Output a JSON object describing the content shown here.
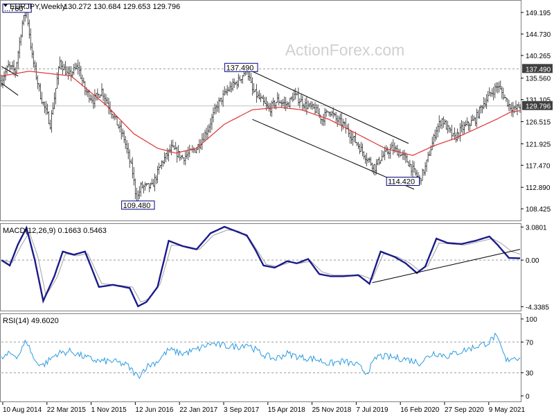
{
  "chart_data": {
    "type": "line",
    "colors": {
      "price": "#222222",
      "ma": "#e03030",
      "macd": "#1a1a8c",
      "signal": "#a0a0a0",
      "rsi": "#2a9be0",
      "trendline": "#000000",
      "level": "#999999"
    },
    "main": {
      "title": "EURJPY,Weekly",
      "ohlc": "130.272 130.684 129.653 129.796",
      "watermark": "ActionForex.com",
      "ylim": [
        106.0,
        151.5
      ],
      "ticks": [
        "149.195",
        "144.730",
        "140.265",
        "135.560",
        "131.105",
        "126.515",
        "121.925",
        "117.470",
        "112.890",
        "108.425"
      ],
      "tick_values": [
        149.195,
        144.73,
        140.265,
        135.56,
        131.105,
        126.515,
        121.925,
        117.47,
        112.89,
        108.425
      ],
      "last_price": "129.796",
      "last_value": 129.796,
      "level_label": "137.490",
      "level_value": 137.49,
      "annotations": [
        {
          "text": "...760",
          "x": 1,
          "y": 149.8
        },
        {
          "text": "137.490",
          "x": 172,
          "y": 137.49
        },
        {
          "text": "109.480",
          "x": 98,
          "y": 109.48
        },
        {
          "text": "114.420",
          "x": 288,
          "y": 114.42
        }
      ],
      "price_anchors": [
        [
          0,
          135
        ],
        [
          5,
          138
        ],
        [
          10,
          137
        ],
        [
          15,
          147
        ],
        [
          18,
          149.76
        ],
        [
          22,
          140
        ],
        [
          28,
          132
        ],
        [
          35,
          126
        ],
        [
          42,
          139
        ],
        [
          48,
          136
        ],
        [
          55,
          138
        ],
        [
          60,
          133
        ],
        [
          66,
          131
        ],
        [
          72,
          133
        ],
        [
          80,
          128
        ],
        [
          88,
          123
        ],
        [
          94,
          116
        ],
        [
          97,
          110
        ],
        [
          100,
          113
        ],
        [
          108,
          113
        ],
        [
          115,
          118
        ],
        [
          122,
          121
        ],
        [
          130,
          119
        ],
        [
          140,
          121
        ],
        [
          148,
          125
        ],
        [
          155,
          130
        ],
        [
          162,
          133
        ],
        [
          170,
          135
        ],
        [
          176,
          137.49
        ],
        [
          180,
          133
        ],
        [
          186,
          131
        ],
        [
          192,
          129
        ],
        [
          198,
          131
        ],
        [
          205,
          130
        ],
        [
          210,
          132
        ],
        [
          218,
          130
        ],
        [
          225,
          129
        ],
        [
          230,
          127
        ],
        [
          235,
          129
        ],
        [
          240,
          127
        ],
        [
          245,
          126
        ],
        [
          250,
          124
        ],
        [
          255,
          122
        ],
        [
          262,
          119
        ],
        [
          268,
          117
        ],
        [
          272,
          119
        ],
        [
          280,
          121
        ],
        [
          286,
          120
        ],
        [
          292,
          118
        ],
        [
          296,
          116
        ],
        [
          300,
          114.42
        ],
        [
          304,
          117
        ],
        [
          308,
          121
        ],
        [
          312,
          125
        ],
        [
          316,
          127
        ],
        [
          320,
          125
        ],
        [
          325,
          123
        ],
        [
          330,
          125
        ],
        [
          335,
          126
        ],
        [
          340,
          127
        ],
        [
          345,
          130
        ],
        [
          350,
          132
        ],
        [
          356,
          134
        ],
        [
          360,
          132
        ],
        [
          364,
          130
        ],
        [
          368,
          129
        ],
        [
          372,
          129.8
        ]
      ],
      "ma_anchors": [
        [
          0,
          136
        ],
        [
          20,
          137
        ],
        [
          50,
          136
        ],
        [
          75,
          130
        ],
        [
          95,
          124
        ],
        [
          112,
          121
        ],
        [
          125,
          120
        ],
        [
          140,
          121
        ],
        [
          160,
          126
        ],
        [
          180,
          129
        ],
        [
          200,
          129.5
        ],
        [
          215,
          129
        ],
        [
          235,
          127
        ],
        [
          255,
          124
        ],
        [
          275,
          121
        ],
        [
          295,
          119.5
        ],
        [
          310,
          121.5
        ],
        [
          325,
          123
        ],
        [
          340,
          125
        ],
        [
          355,
          127
        ],
        [
          365,
          128.5
        ],
        [
          372,
          128.8
        ]
      ],
      "trendlines": [
        [
          [
            0,
            134.5
          ],
          [
            12,
            132
          ]
        ],
        [
          [
            0,
            138
          ],
          [
            12,
            136
          ]
        ],
        [
          [
            176,
            137.49
          ],
          [
            292,
            122
          ]
        ],
        [
          [
            180,
            127
          ],
          [
            296,
            112.5
          ]
        ]
      ]
    },
    "macd": {
      "label": "MACD(12,26,9) 0.1663 0.5463",
      "ylim": [
        -4.7,
        3.3
      ],
      "ticks": [
        "3.0801",
        "0.00",
        "-4.3385"
      ],
      "tick_values": [
        3.0801,
        0.0,
        -4.3385
      ],
      "main_anchors": [
        [
          0,
          0
        ],
        [
          6,
          -0.5
        ],
        [
          12,
          1.5
        ],
        [
          18,
          3.0
        ],
        [
          24,
          0
        ],
        [
          30,
          -3.8
        ],
        [
          38,
          -1.5
        ],
        [
          44,
          0.8
        ],
        [
          52,
          0.5
        ],
        [
          60,
          0.8
        ],
        [
          70,
          -2.5
        ],
        [
          80,
          -2.3
        ],
        [
          92,
          -2.6
        ],
        [
          98,
          -4.3
        ],
        [
          104,
          -3.9
        ],
        [
          112,
          -2.5
        ],
        [
          120,
          1.8
        ],
        [
          130,
          1.3
        ],
        [
          140,
          1.0
        ],
        [
          150,
          2.5
        ],
        [
          160,
          3.1
        ],
        [
          168,
          2.7
        ],
        [
          176,
          2.3
        ],
        [
          182,
          1.0
        ],
        [
          188,
          -0.5
        ],
        [
          196,
          -0.7
        ],
        [
          205,
          -0.1
        ],
        [
          212,
          -0.3
        ],
        [
          220,
          0.1
        ],
        [
          228,
          -1.3
        ],
        [
          236,
          -1.5
        ],
        [
          245,
          -1.5
        ],
        [
          256,
          -1.4
        ],
        [
          264,
          -2.2
        ],
        [
          272,
          0.8
        ],
        [
          282,
          0.3
        ],
        [
          290,
          -0.3
        ],
        [
          298,
          -1.2
        ],
        [
          304,
          -0.6
        ],
        [
          312,
          2.0
        ],
        [
          320,
          1.6
        ],
        [
          330,
          1.5
        ],
        [
          340,
          1.8
        ],
        [
          350,
          2.2
        ],
        [
          356,
          1.4
        ],
        [
          364,
          0.2
        ],
        [
          372,
          0.17
        ]
      ],
      "signal_anchors": [
        [
          0,
          0
        ],
        [
          8,
          -0.2
        ],
        [
          14,
          1.3
        ],
        [
          20,
          2.6
        ],
        [
          26,
          0.4
        ],
        [
          32,
          -3.3
        ],
        [
          40,
          -1.6
        ],
        [
          46,
          0.6
        ],
        [
          54,
          0.4
        ],
        [
          62,
          0.6
        ],
        [
          72,
          -2.2
        ],
        [
          82,
          -2.3
        ],
        [
          94,
          -2.5
        ],
        [
          100,
          -3.9
        ],
        [
          106,
          -3.6
        ],
        [
          114,
          -2.2
        ],
        [
          122,
          1.4
        ],
        [
          132,
          1.3
        ],
        [
          142,
          1.0
        ],
        [
          152,
          2.3
        ],
        [
          162,
          2.8
        ],
        [
          170,
          2.7
        ],
        [
          178,
          2.0
        ],
        [
          184,
          0.8
        ],
        [
          190,
          -0.4
        ],
        [
          198,
          -0.6
        ],
        [
          207,
          -0.2
        ],
        [
          214,
          -0.3
        ],
        [
          222,
          -0.1
        ],
        [
          230,
          -1.1
        ],
        [
          238,
          -1.4
        ],
        [
          247,
          -1.4
        ],
        [
          258,
          -1.4
        ],
        [
          266,
          -1.8
        ],
        [
          274,
          0.6
        ],
        [
          284,
          0.3
        ],
        [
          292,
          -0.2
        ],
        [
          300,
          -1.0
        ],
        [
          306,
          -0.5
        ],
        [
          314,
          1.6
        ],
        [
          322,
          1.5
        ],
        [
          332,
          1.4
        ],
        [
          342,
          1.7
        ],
        [
          352,
          2.0
        ],
        [
          358,
          1.6
        ],
        [
          366,
          0.8
        ],
        [
          372,
          0.55
        ]
      ],
      "trendline": [
        [
          266,
          -2.1
        ],
        [
          372,
          1.0
        ]
      ]
    },
    "rsi": {
      "label": "RSI(14) 49.6020",
      "ylim": [
        0,
        100
      ],
      "ticks": [
        "100",
        "70",
        "30",
        "0"
      ],
      "tick_values": [
        100,
        70,
        30,
        0
      ],
      "anchors": [
        [
          0,
          48
        ],
        [
          6,
          55
        ],
        [
          12,
          52
        ],
        [
          18,
          72
        ],
        [
          24,
          45
        ],
        [
          30,
          40
        ],
        [
          40,
          55
        ],
        [
          50,
          58
        ],
        [
          60,
          50
        ],
        [
          70,
          45
        ],
        [
          80,
          45
        ],
        [
          90,
          40
        ],
        [
          98,
          25
        ],
        [
          104,
          38
        ],
        [
          112,
          45
        ],
        [
          120,
          60
        ],
        [
          130,
          55
        ],
        [
          140,
          60
        ],
        [
          150,
          68
        ],
        [
          160,
          65
        ],
        [
          170,
          64
        ],
        [
          176,
          68
        ],
        [
          186,
          55
        ],
        [
          196,
          48
        ],
        [
          205,
          55
        ],
        [
          215,
          50
        ],
        [
          225,
          48
        ],
        [
          235,
          42
        ],
        [
          245,
          45
        ],
        [
          255,
          40
        ],
        [
          262,
          30
        ],
        [
          270,
          52
        ],
        [
          280,
          50
        ],
        [
          290,
          48
        ],
        [
          300,
          43
        ],
        [
          310,
          56
        ],
        [
          320,
          52
        ],
        [
          330,
          58
        ],
        [
          340,
          64
        ],
        [
          350,
          70
        ],
        [
          354,
          78
        ],
        [
          358,
          65
        ],
        [
          362,
          45
        ],
        [
          366,
          50
        ],
        [
          372,
          49.6
        ]
      ]
    },
    "x_axis": {
      "ticks": [
        "10 Aug 2014",
        "22 Mar 2015",
        "1 Nov 2015",
        "12 Jun 2016",
        "22 Jan 2017",
        "3 Sep 2017",
        "15 Apr 2018",
        "25 Nov 2018",
        "7 Jul 2019",
        "16 Feb 2020",
        "27 Sep 2020",
        "9 May 2021"
      ],
      "n_bars": 373
    }
  }
}
